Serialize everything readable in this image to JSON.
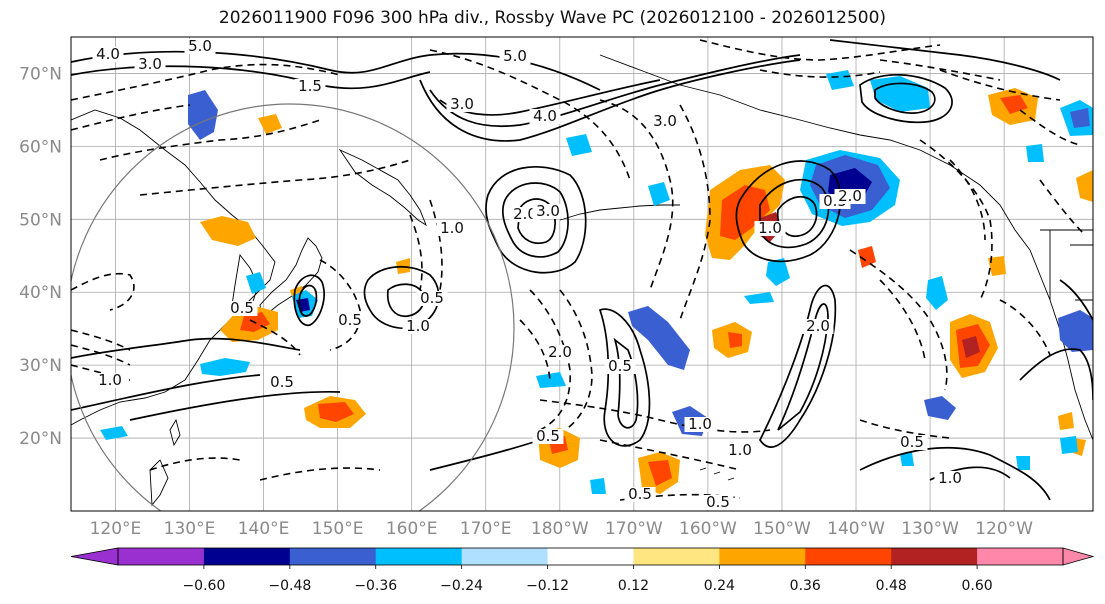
{
  "title": "2026011900 F096 300 hPa div., Rossby Wave PC (2026012100 - 2026012500)",
  "colors": {
    "negative": [
      "#9b30d0",
      "#000090",
      "#3a5fd0",
      "#00bfff",
      "#b0e0ff"
    ],
    "neutral": "#ffffff",
    "positive": [
      "#ffe680",
      "#ffa500",
      "#ff4500",
      "#b22222",
      "#ff88aa"
    ],
    "grid": "#aaaaaa",
    "coast": "#000000",
    "label": "#8a8a8a"
  },
  "map": {
    "lat_labels": [
      "70°N",
      "60°N",
      "50°N",
      "40°N",
      "30°N",
      "20°N"
    ],
    "lon_labels": [
      "120°E",
      "130°E",
      "140°E",
      "150°E",
      "160°E",
      "170°E",
      "180°W",
      "170°W",
      "160°W",
      "150°W",
      "140°W",
      "130°W",
      "120°W"
    ],
    "lat_values": [
      70,
      60,
      50,
      40,
      30,
      20
    ],
    "lon_values": [
      120,
      130,
      140,
      150,
      160,
      170,
      180,
      190,
      200,
      210,
      220,
      230,
      240
    ],
    "extent": {
      "lon_min": 114,
      "lon_max": 252,
      "lat_min": 10,
      "lat_max": 75
    }
  },
  "contour_labels": [
    "4.0",
    "3.0",
    "5.0",
    "1.5",
    "5.0",
    "3.0",
    "4.0",
    "3.0",
    "2.0",
    "1.0",
    "3.0",
    "0.5",
    "0.5",
    "1.0",
    "0.5",
    "1.0",
    "0.5",
    "2.0",
    "0.5",
    "1.0",
    "0.5",
    "0.5",
    "1.0",
    "0.5",
    "1.0",
    "0.5",
    "2.0",
    "0.5",
    "1.0",
    "2.0"
  ],
  "colorbar": {
    "ticks": [
      "−0.60",
      "−0.48",
      "−0.36",
      "−0.24",
      "−0.12",
      "0.12",
      "0.24",
      "0.36",
      "0.48",
      "0.60"
    ],
    "levels": [
      -0.6,
      -0.48,
      -0.36,
      -0.24,
      -0.12,
      0.12,
      0.24,
      0.36,
      0.48,
      0.6
    ]
  }
}
